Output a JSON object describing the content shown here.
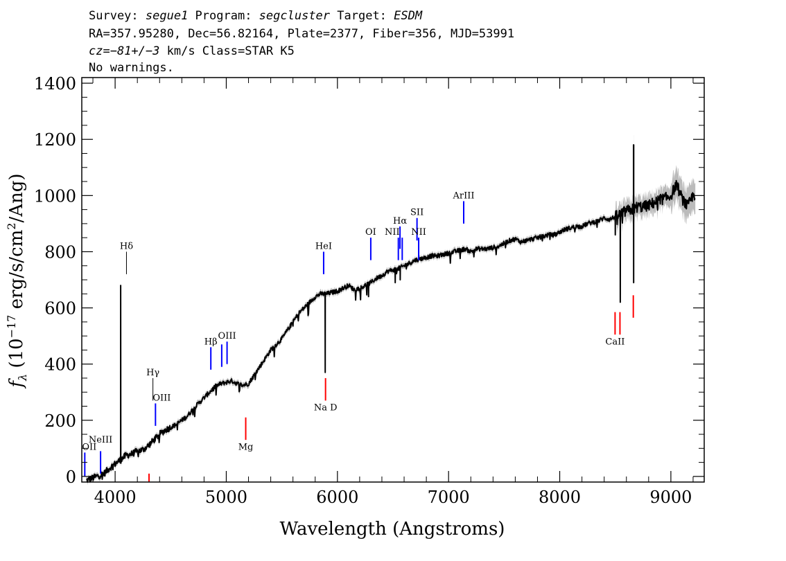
{
  "header": {
    "line1": {
      "survey_label": "Survey: ",
      "survey": "segue1",
      "program_label": " Program: ",
      "program": "segcluster",
      "target_label": " Target: ",
      "target": "ESDM"
    },
    "line2": "RA=357.95280, Dec=56.82164, Plate=2377, Fiber=356, MJD=53991",
    "line3": {
      "cz_label": "cz=",
      "cz": "−81+/−3",
      "rest": " km/s Class=STAR K5"
    },
    "line4": "No warnings."
  },
  "chart_data": {
    "type": "line",
    "title": "",
    "xlabel": "Wavelength (Angstroms)",
    "ylabel_parts": {
      "f": "f",
      "sub": "λ",
      "open": " (10",
      "exp": "−17",
      "mid": " erg/s/cm",
      "exp2": "2",
      "close": "/Ang)"
    },
    "xlim": [
      3700,
      9300
    ],
    "ylim": [
      -20,
      1420
    ],
    "x_ticks": [
      4000,
      5000,
      6000,
      7000,
      8000,
      9000
    ],
    "x_tick_labels": [
      "4000",
      "5000",
      "6000",
      "7000",
      "8000",
      "9000"
    ],
    "x_minor_step": 200,
    "y_ticks": [
      0,
      200,
      400,
      600,
      800,
      1000,
      1200,
      1400
    ],
    "y_tick_labels": [
      "0",
      "200",
      "400",
      "600",
      "800",
      "1000",
      "1200",
      "1400"
    ],
    "y_minor_step": 50,
    "series_color": "#000000",
    "error_color": "#bbbbbb",
    "emission_color": "#0000ff",
    "absorption_color": "#ff0000",
    "label_line_color": "#000000",
    "spectrum_anchors": [
      [
        3740,
        -15
      ],
      [
        3800,
        -5
      ],
      [
        3900,
        10
      ],
      [
        3950,
        30
      ],
      [
        4000,
        45
      ],
      [
        4050,
        60
      ],
      [
        4100,
        75
      ],
      [
        4150,
        80
      ],
      [
        4200,
        90
      ],
      [
        4250,
        95
      ],
      [
        4300,
        110
      ],
      [
        4350,
        130
      ],
      [
        4400,
        150
      ],
      [
        4450,
        165
      ],
      [
        4500,
        175
      ],
      [
        4550,
        185
      ],
      [
        4600,
        200
      ],
      [
        4650,
        215
      ],
      [
        4700,
        240
      ],
      [
        4750,
        260
      ],
      [
        4800,
        280
      ],
      [
        4850,
        300
      ],
      [
        4900,
        320
      ],
      [
        4950,
        330
      ],
      [
        5000,
        335
      ],
      [
        5050,
        340
      ],
      [
        5100,
        330
      ],
      [
        5150,
        325
      ],
      [
        5200,
        330
      ],
      [
        5250,
        360
      ],
      [
        5300,
        390
      ],
      [
        5350,
        420
      ],
      [
        5400,
        450
      ],
      [
        5450,
        470
      ],
      [
        5500,
        490
      ],
      [
        5550,
        520
      ],
      [
        5600,
        550
      ],
      [
        5650,
        580
      ],
      [
        5700,
        600
      ],
      [
        5750,
        620
      ],
      [
        5800,
        640
      ],
      [
        5850,
        650
      ],
      [
        5900,
        650
      ],
      [
        5950,
        655
      ],
      [
        6000,
        660
      ],
      [
        6050,
        670
      ],
      [
        6100,
        680
      ],
      [
        6150,
        665
      ],
      [
        6200,
        670
      ],
      [
        6250,
        680
      ],
      [
        6300,
        690
      ],
      [
        6350,
        705
      ],
      [
        6400,
        715
      ],
      [
        6450,
        730
      ],
      [
        6500,
        735
      ],
      [
        6550,
        740
      ],
      [
        6600,
        750
      ],
      [
        6650,
        760
      ],
      [
        6700,
        770
      ],
      [
        6750,
        775
      ],
      [
        6800,
        780
      ],
      [
        6850,
        785
      ],
      [
        6900,
        785
      ],
      [
        6950,
        790
      ],
      [
        7000,
        795
      ],
      [
        7050,
        800
      ],
      [
        7100,
        805
      ],
      [
        7150,
        810
      ],
      [
        7200,
        800
      ],
      [
        7250,
        810
      ],
      [
        7300,
        810
      ],
      [
        7350,
        810
      ],
      [
        7400,
        815
      ],
      [
        7450,
        820
      ],
      [
        7500,
        830
      ],
      [
        7550,
        840
      ],
      [
        7600,
        845
      ],
      [
        7650,
        835
      ],
      [
        7700,
        840
      ],
      [
        7750,
        845
      ],
      [
        7800,
        850
      ],
      [
        7850,
        855
      ],
      [
        7900,
        860
      ],
      [
        7950,
        860
      ],
      [
        8000,
        870
      ],
      [
        8050,
        880
      ],
      [
        8100,
        885
      ],
      [
        8150,
        890
      ],
      [
        8200,
        890
      ],
      [
        8250,
        900
      ],
      [
        8300,
        905
      ],
      [
        8350,
        910
      ],
      [
        8400,
        920
      ],
      [
        8450,
        915
      ],
      [
        8500,
        925
      ],
      [
        8550,
        935
      ],
      [
        8600,
        945
      ],
      [
        8650,
        950
      ],
      [
        8700,
        960
      ],
      [
        8750,
        960
      ],
      [
        8800,
        965
      ],
      [
        8850,
        975
      ],
      [
        8900,
        985
      ],
      [
        8950,
        990
      ],
      [
        9000,
        1000
      ],
      [
        9050,
        1040
      ],
      [
        9100,
        990
      ],
      [
        9150,
        960
      ],
      [
        9200,
        1000
      ],
      [
        9220,
        1005
      ]
    ],
    "spectrum_features": [
      {
        "x": 4050,
        "y": 680,
        "kind": "spike"
      },
      {
        "x": 5890,
        "y": 370,
        "kind": "dip"
      },
      {
        "x": 6280,
        "y": 640,
        "kind": "dip"
      },
      {
        "x": 6520,
        "y": 690,
        "kind": "dip"
      },
      {
        "x": 6565,
        "y": 700,
        "kind": "dip"
      },
      {
        "x": 8500,
        "y": 860,
        "kind": "dip"
      },
      {
        "x": 8545,
        "y": 620,
        "kind": "dip"
      },
      {
        "x": 8665,
        "y": 1180,
        "kind": "spike"
      },
      {
        "x": 8665,
        "y": 690,
        "kind": "dip"
      }
    ],
    "lines": [
      {
        "label": "OII",
        "type": "emission",
        "x": 3727,
        "y1": 0,
        "y2": 85,
        "label_y": 95,
        "anchor": "start"
      },
      {
        "label": "NeIII",
        "type": "emission",
        "x": 3869,
        "y1": 10,
        "y2": 90,
        "label_y": 120,
        "anchor": "middle"
      },
      {
        "label": "Hδ",
        "type": "label",
        "x": 4102,
        "y1": 720,
        "y2": 800,
        "label_y": 810,
        "anchor": "middle"
      },
      {
        "label": "Hγ",
        "type": "label",
        "x": 4340,
        "y1": 270,
        "y2": 350,
        "label_y": 360,
        "anchor": "middle"
      },
      {
        "label": "OIII",
        "type": "emission",
        "x": 4363,
        "y1": 180,
        "y2": 260,
        "label_y": 270,
        "anchor": "start"
      },
      {
        "label": "Hβ",
        "type": "emission",
        "x": 4861,
        "y1": 380,
        "y2": 460,
        "label_y": 470,
        "anchor": "middle"
      },
      {
        "label": "",
        "type": "emission",
        "x": 4959,
        "y1": 390,
        "y2": 470,
        "label_y": 480,
        "anchor": "middle"
      },
      {
        "label": "OIII",
        "type": "emission",
        "x": 5007,
        "y1": 400,
        "y2": 480,
        "label_y": 490,
        "anchor": "middle"
      },
      {
        "label": "HeI",
        "type": "emission",
        "x": 5876,
        "y1": 720,
        "y2": 800,
        "label_y": 810,
        "anchor": "middle"
      },
      {
        "label": "OI",
        "type": "emission",
        "x": 6300,
        "y1": 770,
        "y2": 850,
        "label_y": 860,
        "anchor": "middle"
      },
      {
        "label": "NII",
        "type": "emission",
        "x": 6548,
        "y1": 770,
        "y2": 850,
        "label_y": 860,
        "anchor": "end"
      },
      {
        "label": "Hα",
        "type": "emission",
        "x": 6563,
        "y1": 810,
        "y2": 890,
        "label_y": 900,
        "anchor": "middle"
      },
      {
        "label": "",
        "type": "emission",
        "x": 6583,
        "y1": 770,
        "y2": 850,
        "label_y": 860,
        "anchor": "middle"
      },
      {
        "label": "SII",
        "type": "emission",
        "x": 6716,
        "y1": 840,
        "y2": 920,
        "label_y": 930,
        "anchor": "middle"
      },
      {
        "label": "NII",
        "type": "emission",
        "x": 6731,
        "y1": 770,
        "y2": 850,
        "label_y": 860,
        "anchor": "middle"
      },
      {
        "label": "ArIII",
        "type": "emission",
        "x": 7136,
        "y1": 900,
        "y2": 980,
        "label_y": 990,
        "anchor": "middle"
      },
      {
        "label": "Mg",
        "type": "absorption",
        "x": 5175,
        "y1": 130,
        "y2": 210,
        "label_y": 95,
        "anchor": "middle"
      },
      {
        "label": "Na D",
        "type": "absorption",
        "x": 5893,
        "y1": 270,
        "y2": 350,
        "label_y": 235,
        "anchor": "middle"
      },
      {
        "label": "CaII",
        "type": "absorption",
        "x": 8498,
        "y1": 505,
        "y2": 585,
        "label_y": 470,
        "anchor": "middle"
      },
      {
        "label": "",
        "type": "absorption",
        "x": 8542,
        "y1": 505,
        "y2": 585,
        "label_y": 470,
        "anchor": "middle"
      },
      {
        "label": "",
        "type": "absorption",
        "x": 8662,
        "y1": 565,
        "y2": 645,
        "label_y": 530,
        "anchor": "middle"
      },
      {
        "label": "",
        "type": "absorption",
        "x": 4305,
        "y1": -20,
        "y2": 10,
        "label_y": -30,
        "anchor": "middle"
      }
    ]
  }
}
